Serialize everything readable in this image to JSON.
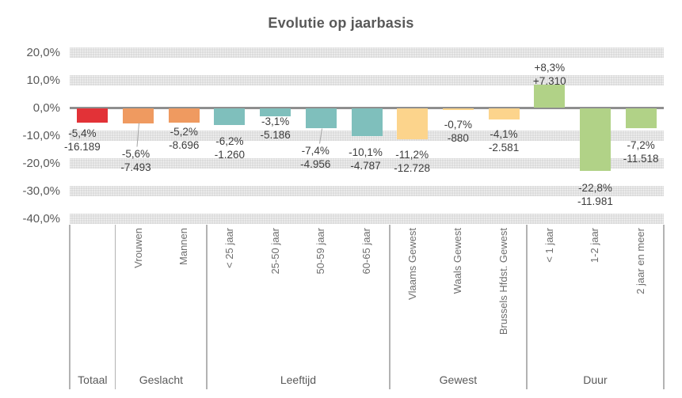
{
  "chart_data": {
    "type": "bar",
    "title": "Evolutie op jaarbasis",
    "ylabel": "",
    "xlabel": "",
    "ylim": [
      -40,
      20
    ],
    "grid": "horizontal-bands",
    "legend": "none",
    "value_format": "dutch (comma decimal, period thousands)",
    "y_ticks": [
      {
        "value": 20,
        "label": "20,0%"
      },
      {
        "value": 10,
        "label": "10,0%"
      },
      {
        "value": 0,
        "label": "0,0%"
      },
      {
        "value": -10,
        "label": "-10,0%"
      },
      {
        "value": -20,
        "label": "-20,0%"
      },
      {
        "value": -30,
        "label": "-30,0%"
      },
      {
        "value": -40,
        "label": "-40,0%"
      }
    ],
    "groups": [
      {
        "label": "Totaal",
        "color": "#e23237",
        "categories": [
          {
            "name": "",
            "pct": -5.4,
            "pct_label": "-5,4%",
            "abs_label": "-16.189"
          }
        ]
      },
      {
        "label": "Geslacht",
        "color": "#ef9a60",
        "categories": [
          {
            "name": "Vrouwen",
            "pct": -5.6,
            "pct_label": "-5,6%",
            "abs_label": "-7.493"
          },
          {
            "name": "Mannen",
            "pct": -5.2,
            "pct_label": "-5,2%",
            "abs_label": "-8.696"
          }
        ]
      },
      {
        "label": "Leeftijd",
        "color": "#7fbfbc",
        "categories": [
          {
            "name": "< 25 jaar",
            "pct": -6.2,
            "pct_label": "-6,2%",
            "abs_label": "-1.260"
          },
          {
            "name": "25-50 jaar",
            "pct": -3.1,
            "pct_label": "-3,1%",
            "abs_label": "-5.186"
          },
          {
            "name": "50-59 jaar",
            "pct": -7.4,
            "pct_label": "-7,4%",
            "abs_label": "-4.956"
          },
          {
            "name": "60-65 jaar",
            "pct": -10.1,
            "pct_label": "-10,1%",
            "abs_label": "-4.787"
          }
        ]
      },
      {
        "label": "Gewest",
        "color": "#fcd48c",
        "categories": [
          {
            "name": "Vlaams Gewest",
            "pct": -11.2,
            "pct_label": "-11,2%",
            "abs_label": "-12.728"
          },
          {
            "name": "Waals Gewest",
            "pct": -0.7,
            "pct_label": "-0,7%",
            "abs_label": "-880"
          },
          {
            "name": "Brussels Hfdst. Gewest",
            "pct": -4.1,
            "pct_label": "-4,1%",
            "abs_label": "-2.581"
          }
        ]
      },
      {
        "label": "Duur",
        "color": "#b1d287",
        "categories": [
          {
            "name": "< 1 jaar",
            "pct": 8.3,
            "pct_label": "+8,3%",
            "abs_label": "+7.310"
          },
          {
            "name": "1-2 jaar",
            "pct": -22.8,
            "pct_label": "-22,8%",
            "abs_label": "-11.981"
          },
          {
            "name": "2 jaar en meer",
            "pct": -7.2,
            "pct_label": "-7,2%",
            "abs_label": "-11.518"
          }
        ]
      }
    ]
  }
}
